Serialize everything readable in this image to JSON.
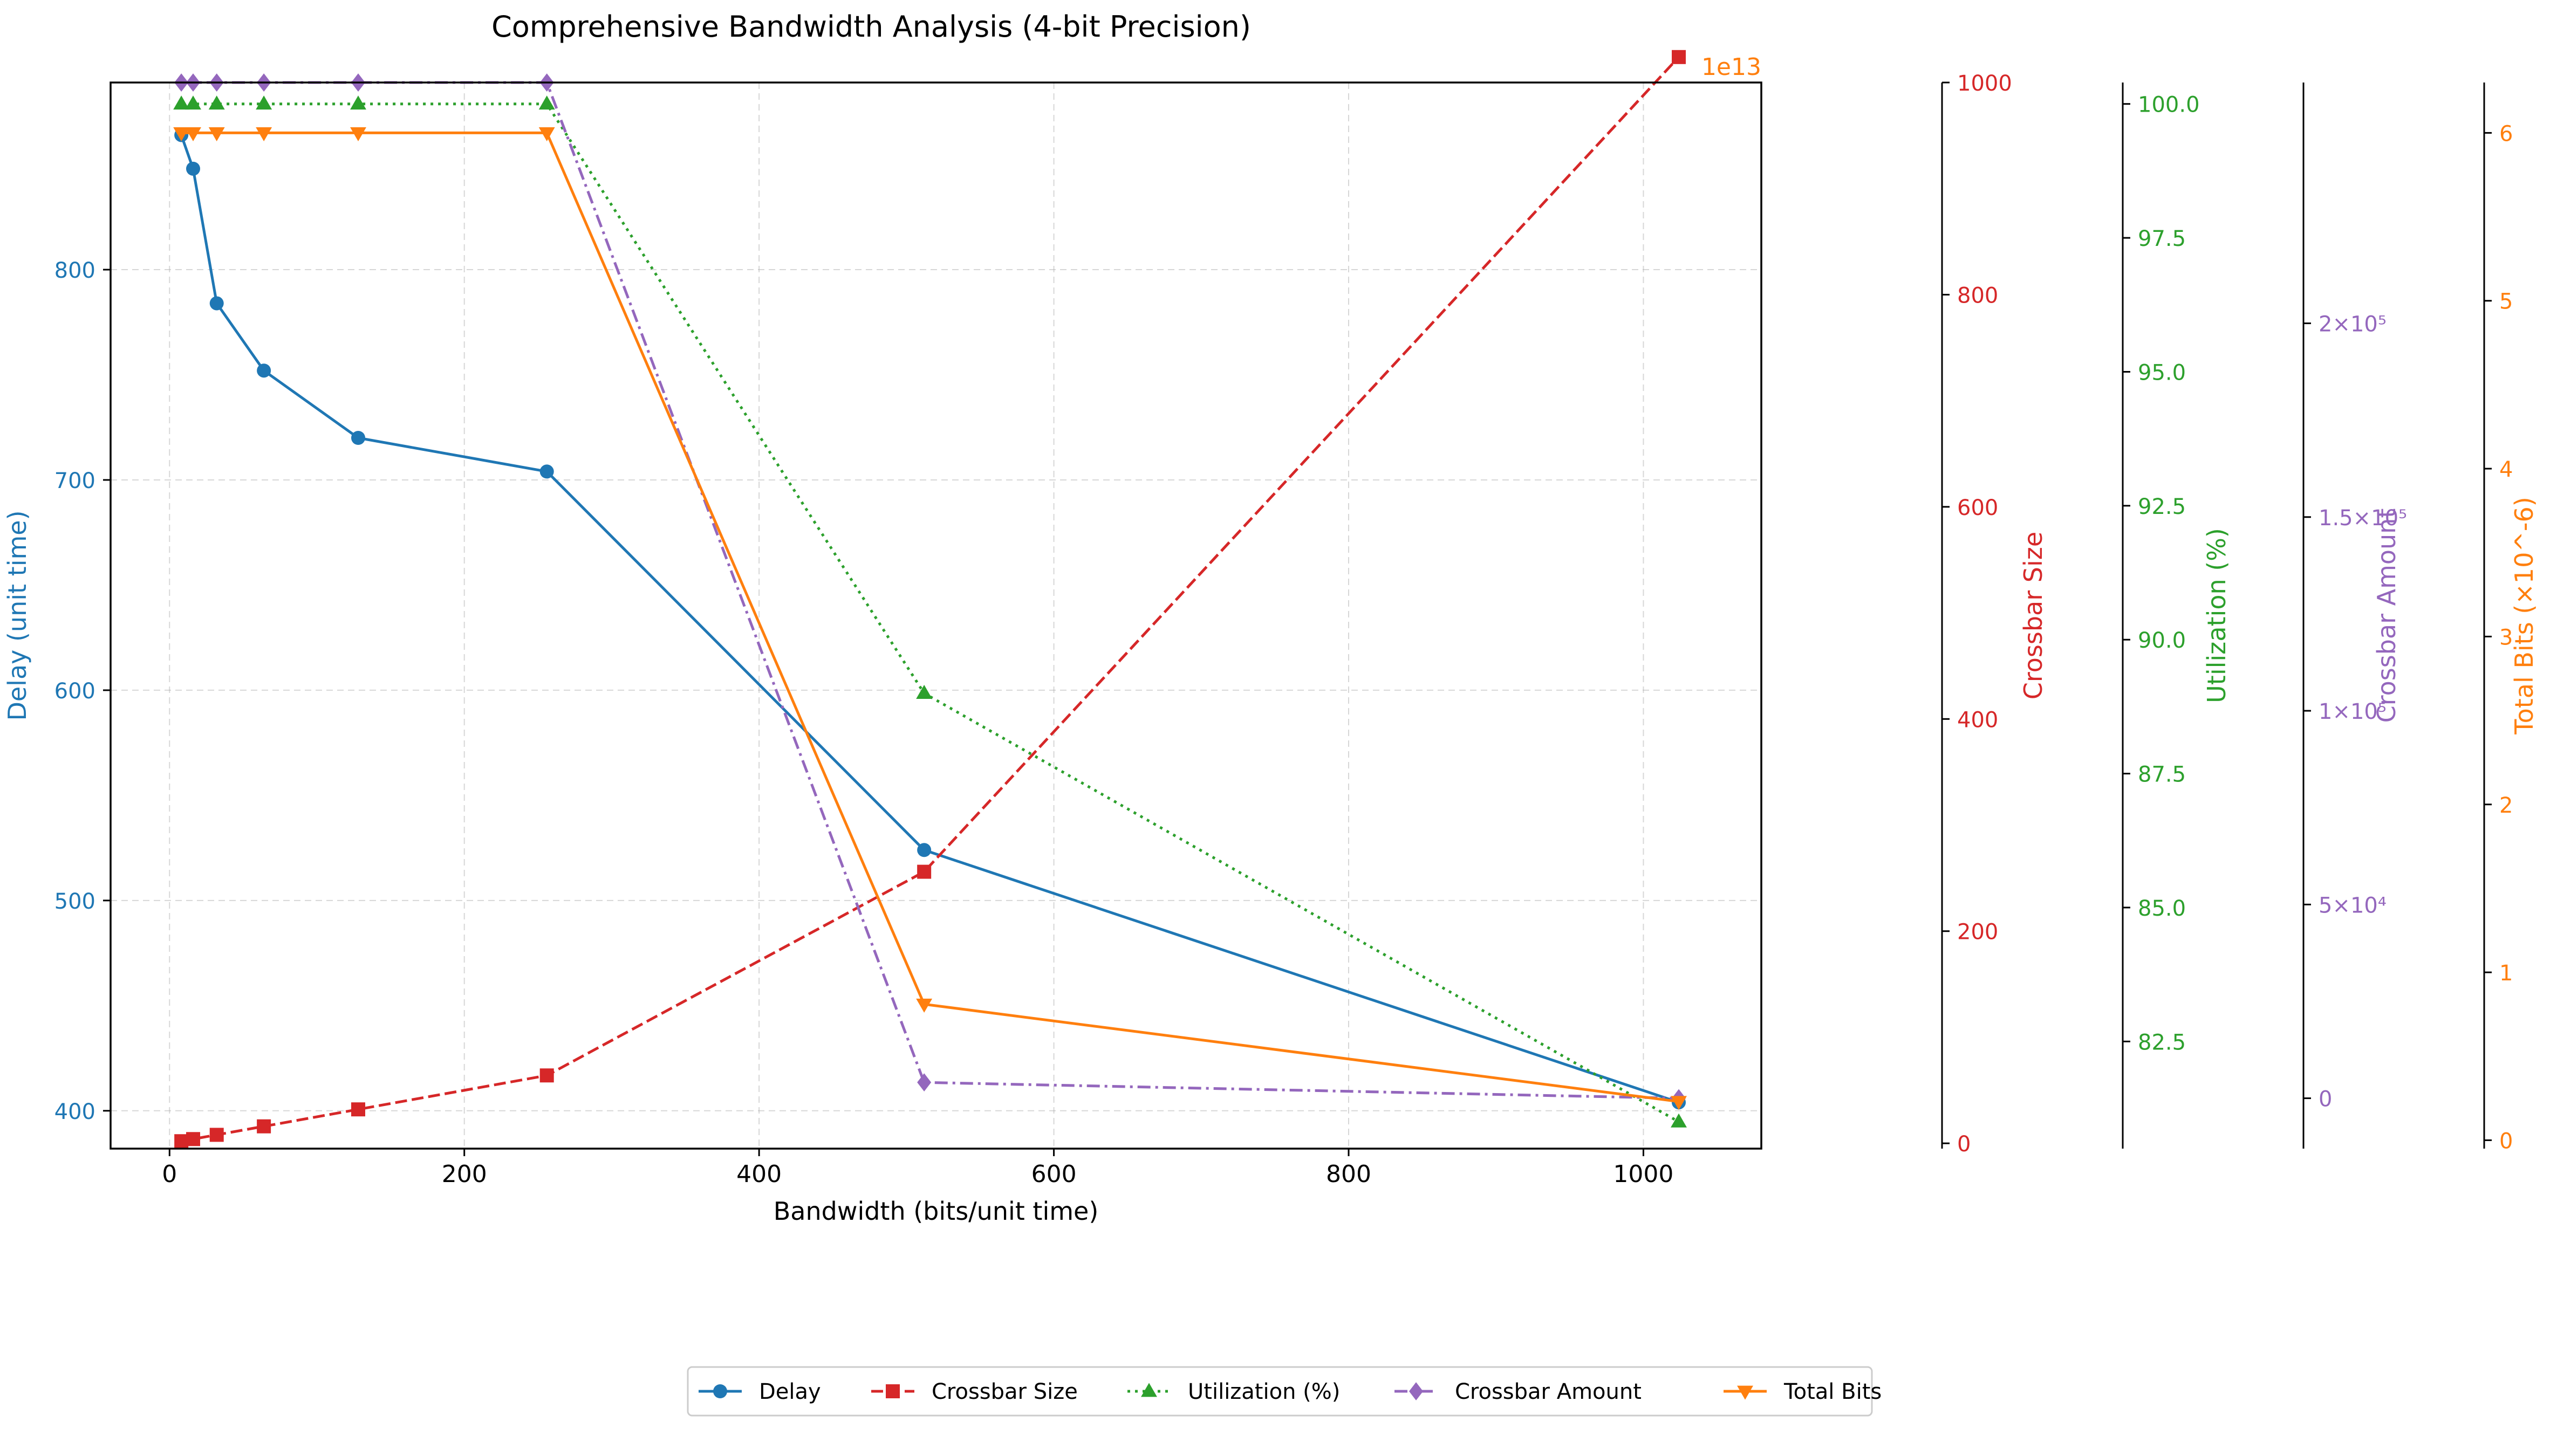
{
  "chart_data": {
    "type": "line",
    "title": "Comprehensive Bandwidth Analysis (4-bit Precision)",
    "xlabel": "Bandwidth (bits/unit time)",
    "xlim": [
      -40,
      1080
    ],
    "xticks": [
      0,
      200,
      400,
      600,
      800,
      1000
    ],
    "x": [
      8,
      16,
      32,
      64,
      128,
      256,
      512,
      1024
    ],
    "grid": true,
    "legend_position": "bottom-center",
    "series": [
      {
        "name": "Delay",
        "axis": "Delay (unit time)",
        "color": "#1f77b4",
        "marker": "circle",
        "linestyle": "solid",
        "values": [
          864,
          848,
          784,
          752,
          720,
          704,
          524,
          404
        ],
        "range": [
          382,
          889
        ],
        "ticks": [
          400,
          500,
          600,
          700,
          800
        ],
        "tick_labels": [
          "400",
          "500",
          "600",
          "700",
          "800"
        ]
      },
      {
        "name": "Crossbar Size",
        "axis": "Crossbar Size",
        "color": "#d62728",
        "marker": "square",
        "linestyle": "dashed",
        "values": [
          2,
          4,
          8,
          16,
          32,
          64,
          256,
          1024
        ],
        "range": [
          -5,
          1000
        ],
        "ticks": [
          0,
          200,
          400,
          600,
          800,
          1000
        ],
        "tick_labels": [
          "0",
          "200",
          "400",
          "600",
          "800",
          "1000"
        ]
      },
      {
        "name": "Utilization (%)",
        "axis": "Utilization (%)",
        "color": "#2ca02c",
        "marker": "triangle-up",
        "linestyle": "dotted",
        "values": [
          100,
          100,
          100,
          100,
          100,
          100,
          89,
          81
        ],
        "range": [
          80.5,
          100.4
        ],
        "ticks": [
          82.5,
          85.0,
          87.5,
          90.0,
          92.5,
          95.0,
          97.5,
          100.0
        ],
        "tick_labels": [
          "82.5",
          "85.0",
          "87.5",
          "90.0",
          "92.5",
          "95.0",
          "97.5",
          "100.0"
        ]
      },
      {
        "name": "Crossbar Amount",
        "axis": "Crossbar Amount",
        "color": "#9467bd",
        "marker": "diamond",
        "linestyle": "dashdot",
        "values": [
          262144,
          262144,
          262144,
          262144,
          262144,
          262144,
          4096,
          1
        ],
        "range": [
          -13000,
          262150
        ],
        "ticks": [
          0,
          50000,
          100000,
          150000,
          200000
        ],
        "tick_labels": [
          "0",
          "5×10⁴",
          "1×10⁵",
          "1.5×10⁵",
          "2×10⁵"
        ]
      },
      {
        "name": "Total Bits",
        "axis": "Total Bits (×10^-6)",
        "color": "#ff7f0e",
        "marker": "triangle-down",
        "linestyle": "solid",
        "axis_offset_label": "1e13",
        "values": [
          6.0,
          6.0,
          6.0,
          6.0,
          6.0,
          6.0,
          0.81,
          0.23
        ],
        "range": [
          -0.05,
          6.3
        ],
        "ticks": [
          0,
          1,
          2,
          3,
          4,
          5,
          6
        ],
        "tick_labels": [
          "0",
          "1",
          "2",
          "3",
          "4",
          "5",
          "6"
        ]
      }
    ]
  }
}
